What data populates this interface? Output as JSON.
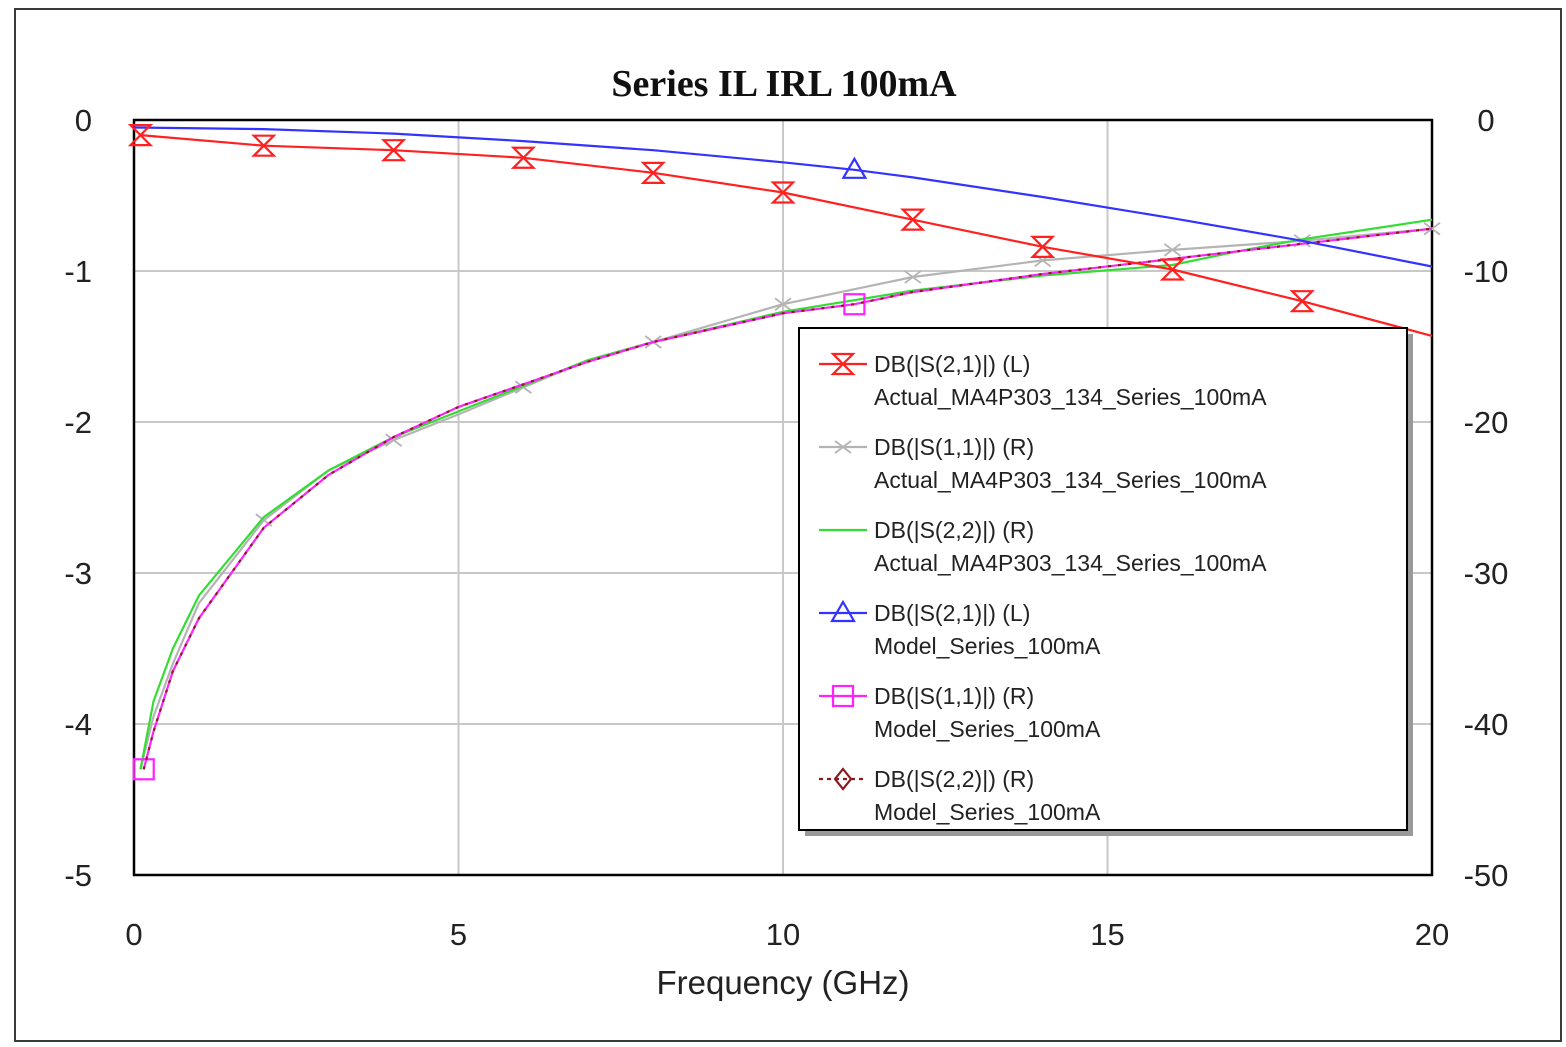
{
  "chart_data": {
    "type": "line",
    "title": "Series IL IRL 100mA",
    "xlabel": "Frequency (GHz)",
    "ylabel_left": "",
    "ylabel_right": "",
    "xlim": [
      0,
      20
    ],
    "ylim_left": [
      -5,
      0
    ],
    "ylim_right": [
      -50,
      0
    ],
    "x_ticks": [
      0,
      5,
      10,
      15,
      20
    ],
    "y_ticks_left": [
      0,
      -1,
      -2,
      -3,
      -4,
      -5
    ],
    "y_ticks_right": [
      0,
      -10,
      -20,
      -30,
      -40,
      -50
    ],
    "grid": true,
    "legend_position": "center-right",
    "series": [
      {
        "name": "DB(|S(2,1)|) (L)",
        "name2": "Actual_MA4P303_134_Series_100mA",
        "axis": "left",
        "color": "#ff2020",
        "marker": "hourglass",
        "x": [
          0.1,
          2,
          4,
          6,
          8,
          10,
          12,
          14,
          16,
          18,
          20
        ],
        "y": [
          -0.1,
          -0.17,
          -0.2,
          -0.25,
          -0.35,
          -0.48,
          -0.66,
          -0.84,
          -0.99,
          -1.2,
          -1.43
        ],
        "marker_x": [
          0.1,
          2,
          4,
          6,
          8,
          10,
          12,
          14,
          16,
          18
        ]
      },
      {
        "name": "DB(|S(1,1)|) (R)",
        "name2": "Actual_MA4P303_134_Series_100mA",
        "axis": "right",
        "color": "#b4b4b4",
        "marker": "cross",
        "x": [
          0.1,
          0.3,
          0.6,
          1,
          2,
          3,
          4,
          5,
          6,
          7,
          8,
          10,
          12,
          14,
          16,
          18,
          20
        ],
        "y": [
          -43,
          -39.5,
          -36,
          -32,
          -26.5,
          -23.2,
          -21.2,
          -19.5,
          -17.7,
          -15.9,
          -14.7,
          -12.2,
          -10.4,
          -9.3,
          -8.6,
          -8.0,
          -7.2
        ],
        "marker_x": [
          2,
          4,
          6,
          8,
          10,
          12,
          14,
          16,
          18,
          20
        ]
      },
      {
        "name": "DB(|S(2,2)|) (R)",
        "name2": "Actual_MA4P303_134_Series_100mA",
        "axis": "right",
        "color": "#33dd33",
        "marker": "none",
        "x": [
          0.1,
          0.3,
          0.6,
          1,
          2,
          3,
          4,
          5,
          6,
          7,
          8,
          10,
          12,
          14,
          16,
          17,
          18,
          20
        ],
        "y": [
          -43,
          -38.5,
          -35,
          -31.5,
          -26.3,
          -23.2,
          -21.0,
          -19.3,
          -17.6,
          -15.9,
          -14.7,
          -12.7,
          -11.3,
          -10.3,
          -9.6,
          -8.7,
          -7.9,
          -6.6
        ]
      },
      {
        "name": "DB(|S(2,1)|) (L)",
        "name2": "Model_Series_100mA",
        "axis": "left",
        "color": "#3333ff",
        "marker": "triangle",
        "x": [
          0,
          2,
          4,
          6,
          8,
          10,
          11.1,
          12,
          14,
          16,
          18,
          20
        ],
        "y": [
          -0.05,
          -0.06,
          -0.09,
          -0.14,
          -0.2,
          -0.28,
          -0.33,
          -0.38,
          -0.51,
          -0.65,
          -0.8,
          -0.97
        ],
        "marker_x": [
          11.1
        ]
      },
      {
        "name": "DB(|S(1,1)|) (R)",
        "name2": "Model_Series_100mA",
        "axis": "right",
        "color": "#ff22ff",
        "marker": "square",
        "x": [
          0.15,
          0.3,
          0.6,
          1,
          2,
          3,
          4,
          5,
          6,
          7,
          8,
          10,
          11.1,
          12,
          14,
          16,
          18,
          20
        ],
        "y": [
          -43,
          -40.5,
          -36.5,
          -33,
          -27,
          -23.5,
          -21.0,
          -19.0,
          -17.5,
          -16.0,
          -14.7,
          -12.8,
          -12.2,
          -11.4,
          -10.2,
          -9.2,
          -8.2,
          -7.2
        ],
        "marker_x": [
          0.15,
          11.1
        ]
      },
      {
        "name": "DB(|S(2,2)|) (R)",
        "name2": "Model_Series_100mA",
        "axis": "right",
        "color": "#8b1a1a",
        "marker": "diamond",
        "dash": "3 7",
        "x": [
          0.15,
          0.3,
          0.6,
          1,
          2,
          3,
          4,
          5,
          6,
          7,
          8,
          10,
          11.1,
          12,
          14,
          16,
          18,
          20
        ],
        "y": [
          -43,
          -40.5,
          -36.5,
          -33,
          -27,
          -23.5,
          -21.0,
          -19.0,
          -17.5,
          -16.0,
          -14.7,
          -12.8,
          -12.2,
          -11.4,
          -10.2,
          -9.2,
          -8.2,
          -7.2
        ]
      }
    ]
  }
}
